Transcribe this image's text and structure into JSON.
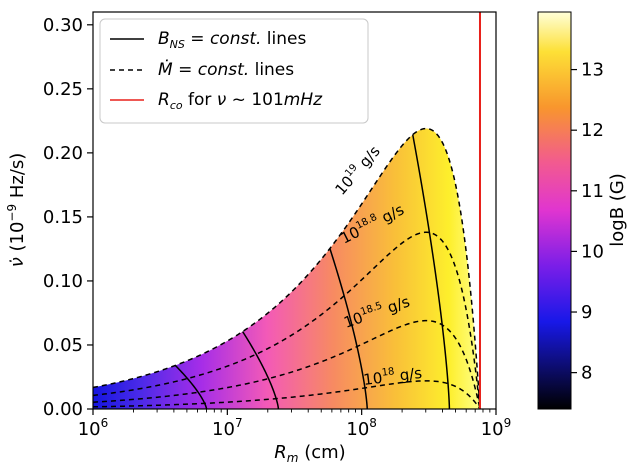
{
  "chart_data": {
    "type": "line",
    "title": "",
    "xlabel": "R_m (cm)",
    "ylabel": "ν̇ (10^-9 Hz/s)",
    "xscale": "log",
    "xlim": [
      1000000,
      1000000000
    ],
    "ylim": [
      0.0,
      0.31
    ],
    "x_ticks": [
      {
        "base": "10",
        "exp": "6"
      },
      {
        "base": "10",
        "exp": "7"
      },
      {
        "base": "10",
        "exp": "8"
      },
      {
        "base": "10",
        "exp": "9"
      }
    ],
    "y_ticks": [
      "0.00",
      "0.05",
      "0.10",
      "0.15",
      "0.20",
      "0.25",
      "0.30"
    ],
    "corotation_radius": 760000000,
    "mdot_curves": [
      {
        "log_mdot": 19.0,
        "label_base": "10",
        "label_exp": "19",
        "label_unit": " g/s",
        "peak_x": 300000000,
        "peak_y": 0.219
      },
      {
        "log_mdot": 18.8,
        "label_base": "10",
        "label_exp": "18.8",
        "label_unit": " g/s",
        "peak_x": 300000000,
        "peak_y": 0.138
      },
      {
        "log_mdot": 18.5,
        "label_base": "10",
        "label_exp": "18.5",
        "label_unit": " g/s",
        "peak_x": 300000000,
        "peak_y": 0.069
      },
      {
        "log_mdot": 18.0,
        "label_base": "10",
        "label_exp": "18",
        "label_unit": " g/s",
        "peak_x": 300000000,
        "peak_y": 0.022
      }
    ],
    "bns_lines": [
      {
        "top_x": 4100000,
        "bottom_x": 7000000
      },
      {
        "top_x": 13000000,
        "bottom_x": 24000000
      },
      {
        "top_x": 58000000,
        "bottom_x": 110000000
      },
      {
        "top_x": 240000000,
        "bottom_x": 450000000
      }
    ],
    "colorbar": {
      "label": "logB (G)",
      "range": [
        7.4,
        13.95
      ],
      "ticks": [
        "8",
        "9",
        "10",
        "11",
        "12",
        "13"
      ]
    },
    "legend": {
      "placement": "top-left",
      "entries": [
        {
          "style": "solid",
          "color": "#000000",
          "label": "B_NS = const. lines"
        },
        {
          "style": "dashed",
          "color": "#000000",
          "label": "Ṁ = const. lines"
        },
        {
          "style": "solid",
          "color": "#e8201a",
          "label": "R_co for ν ~ 101mHz"
        }
      ]
    },
    "colors": {
      "line": "#000000",
      "corotation": "#e8201a"
    },
    "grid": false
  }
}
